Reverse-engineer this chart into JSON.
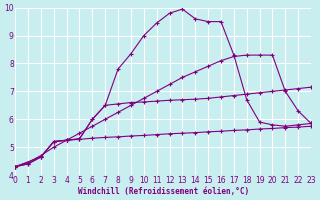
{
  "xlabel": "Windchill (Refroidissement éolien,°C)",
  "bg_color": "#c8eef0",
  "line_color": "#800080",
  "grid_color": "#ffffff",
  "xlim": [
    0,
    23
  ],
  "ylim": [
    4,
    10
  ],
  "x_ticks": [
    0,
    1,
    2,
    3,
    4,
    5,
    6,
    7,
    8,
    9,
    10,
    11,
    12,
    13,
    14,
    15,
    16,
    17,
    18,
    19,
    20,
    21,
    22,
    23
  ],
  "y_ticks": [
    4,
    5,
    6,
    7,
    8,
    9,
    10
  ],
  "curve_top_x": [
    0,
    1,
    2,
    3,
    4,
    5,
    6,
    7,
    8,
    9,
    10,
    11,
    12,
    13,
    14,
    15,
    16,
    17,
    18,
    19,
    20,
    21,
    22,
    23
  ],
  "curve_top_y": [
    4.3,
    4.4,
    4.65,
    5.2,
    5.25,
    5.3,
    6.0,
    6.5,
    7.8,
    8.35,
    9.0,
    9.45,
    9.8,
    9.95,
    9.6,
    9.5,
    9.5,
    8.3,
    6.7,
    5.9,
    5.8,
    5.75,
    5.8,
    5.85
  ],
  "curve_lin_x": [
    0,
    1,
    2,
    3,
    4,
    5,
    6,
    7,
    8,
    9,
    10,
    11,
    12,
    13,
    14,
    15,
    16,
    17,
    18,
    19,
    20,
    21,
    22,
    23
  ],
  "curve_lin_y": [
    4.3,
    4.45,
    4.7,
    5.0,
    5.25,
    5.5,
    5.75,
    6.0,
    6.25,
    6.5,
    6.75,
    7.0,
    7.25,
    7.5,
    7.7,
    7.9,
    8.1,
    8.25,
    8.3,
    8.3,
    8.3,
    7.0,
    6.3,
    5.85
  ],
  "curve_mid_x": [
    0,
    2,
    3,
    4,
    5,
    6,
    7,
    8,
    9,
    10,
    11,
    12,
    13,
    14,
    15,
    16,
    17,
    18,
    19,
    20,
    21,
    22,
    23
  ],
  "curve_mid_y": [
    4.3,
    4.65,
    5.2,
    5.25,
    5.3,
    6.0,
    6.5,
    6.55,
    6.6,
    6.62,
    6.65,
    6.68,
    6.7,
    6.72,
    6.75,
    6.8,
    6.85,
    6.9,
    6.95,
    7.0,
    7.05,
    7.1,
    7.15
  ],
  "curve_flat_x": [
    0,
    1,
    2,
    3,
    4,
    5,
    6,
    7,
    8,
    9,
    10,
    11,
    12,
    13,
    14,
    15,
    16,
    17,
    18,
    19,
    20,
    21,
    22,
    23
  ],
  "curve_flat_y": [
    4.3,
    4.4,
    4.65,
    5.2,
    5.25,
    5.28,
    5.32,
    5.35,
    5.37,
    5.4,
    5.42,
    5.45,
    5.48,
    5.5,
    5.52,
    5.55,
    5.57,
    5.6,
    5.62,
    5.65,
    5.67,
    5.7,
    5.72,
    5.75
  ]
}
